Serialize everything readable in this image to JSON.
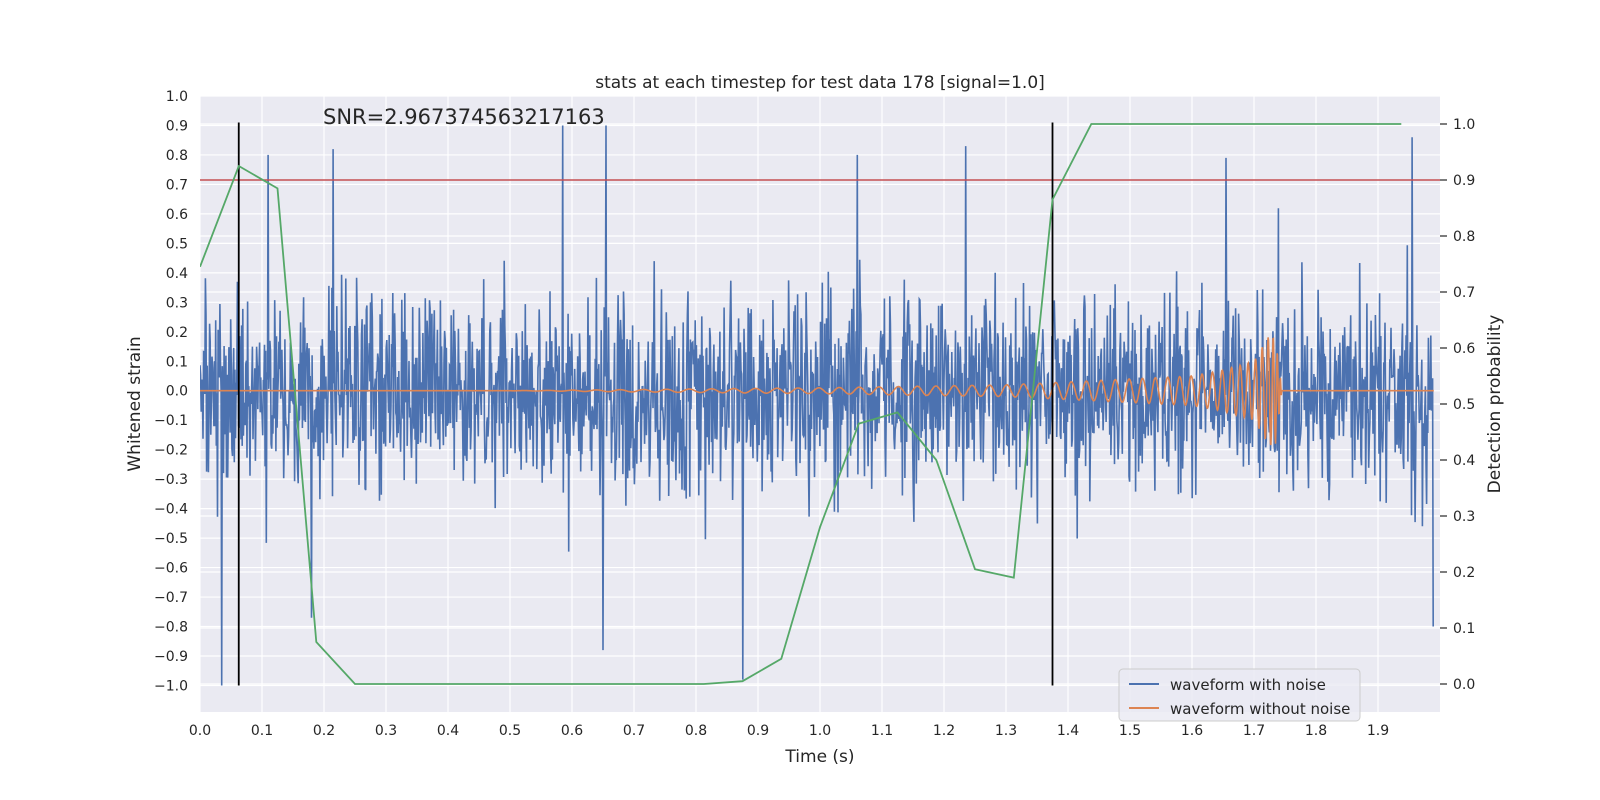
{
  "chart_data": {
    "type": "line",
    "title": "stats at each timestep for test data 178 [signal=1.0]",
    "annotation": "SNR=2.967374563217163",
    "xlabel": "Time (s)",
    "ylabel": "Whitened strain",
    "y2label": "Detection probability",
    "xlim": [
      0.0,
      2.0
    ],
    "ylim": [
      -1.09,
      1.0
    ],
    "y2lim": [
      -0.05,
      1.05
    ],
    "xticks": [
      "0.0",
      "0.1",
      "0.2",
      "0.3",
      "0.4",
      "0.5",
      "0.6",
      "0.7",
      "0.8",
      "0.9",
      "1.0",
      "1.1",
      "1.2",
      "1.3",
      "1.4",
      "1.5",
      "1.6",
      "1.7",
      "1.8",
      "1.9"
    ],
    "yticks": [
      "1.0",
      "0.9",
      "0.8",
      "0.7",
      "0.6",
      "0.5",
      "0.4",
      "0.3",
      "0.2",
      "0.1",
      "0.0",
      "−0.1",
      "−0.2",
      "−0.3",
      "−0.4",
      "−0.5",
      "−0.6",
      "−0.7",
      "−0.8",
      "−0.9",
      "−1.0"
    ],
    "y2ticks": [
      "1.0",
      "0.9",
      "0.8",
      "0.7",
      "0.6",
      "0.5",
      "0.4",
      "0.3",
      "0.2",
      "0.1",
      "0.0"
    ],
    "grid": true,
    "legend": {
      "position": "lower-right",
      "entries": [
        {
          "label": "waveform with noise",
          "color": "#4c72b0"
        },
        {
          "label": "waveform without noise",
          "color": "#dd8452"
        }
      ]
    },
    "threshold": {
      "axis": "y2",
      "value": 0.9,
      "color": "#c44e52"
    },
    "markers": {
      "x": [
        0.0625,
        1.375
      ],
      "ymin": -1.0,
      "ymax": 0.91,
      "color": "#000000"
    },
    "series": [
      {
        "name": "waveform with noise",
        "color": "#4c72b0",
        "axis": "y",
        "description": "noisy whitened strain, approx. amplitude ±0.5 with spikes to ±1.0",
        "peaks": [
          {
            "x": 0.035,
            "y": -1.0
          },
          {
            "x": 0.11,
            "y": 0.8
          },
          {
            "x": 0.18,
            "y": -0.77
          },
          {
            "x": 0.215,
            "y": 0.82
          },
          {
            "x": 0.585,
            "y": 0.9
          },
          {
            "x": 0.655,
            "y": 0.9
          },
          {
            "x": 0.65,
            "y": -0.88
          },
          {
            "x": 0.875,
            "y": -0.98
          },
          {
            "x": 1.06,
            "y": 0.8
          },
          {
            "x": 1.235,
            "y": 0.83
          },
          {
            "x": 1.655,
            "y": 0.79
          },
          {
            "x": 1.955,
            "y": 0.86
          },
          {
            "x": 1.99,
            "y": -0.8
          }
        ]
      },
      {
        "name": "waveform without noise",
        "color": "#dd8452",
        "axis": "y",
        "description": "chirp signal growing in amplitude and frequency, ending near 1.75 s",
        "points": [
          [
            0.0,
            0.0
          ],
          [
            0.5,
            0.0
          ],
          [
            1.0,
            0.01
          ],
          [
            1.3,
            0.02
          ],
          [
            1.5,
            0.04
          ],
          [
            1.6,
            0.05
          ],
          [
            1.65,
            0.07
          ],
          [
            1.7,
            0.1
          ],
          [
            1.725,
            0.19
          ],
          [
            1.735,
            -0.18
          ],
          [
            1.745,
            0.0
          ],
          [
            1.99,
            0.0
          ]
        ]
      },
      {
        "name": "detection probability",
        "color": "#55a868",
        "axis": "y2",
        "points": [
          [
            0.0,
            0.745
          ],
          [
            0.0625,
            0.925
          ],
          [
            0.125,
            0.885
          ],
          [
            0.1875,
            0.075
          ],
          [
            0.25,
            0.0
          ],
          [
            0.3125,
            0.0
          ],
          [
            0.5,
            0.0
          ],
          [
            0.8125,
            0.0
          ],
          [
            0.875,
            0.005
          ],
          [
            0.9375,
            0.045
          ],
          [
            1.0,
            0.28
          ],
          [
            1.0625,
            0.465
          ],
          [
            1.125,
            0.485
          ],
          [
            1.1875,
            0.4
          ],
          [
            1.25,
            0.205
          ],
          [
            1.3125,
            0.19
          ],
          [
            1.375,
            0.865
          ],
          [
            1.4375,
            1.0
          ],
          [
            1.5,
            1.0
          ],
          [
            1.9375,
            1.0
          ]
        ]
      }
    ]
  }
}
